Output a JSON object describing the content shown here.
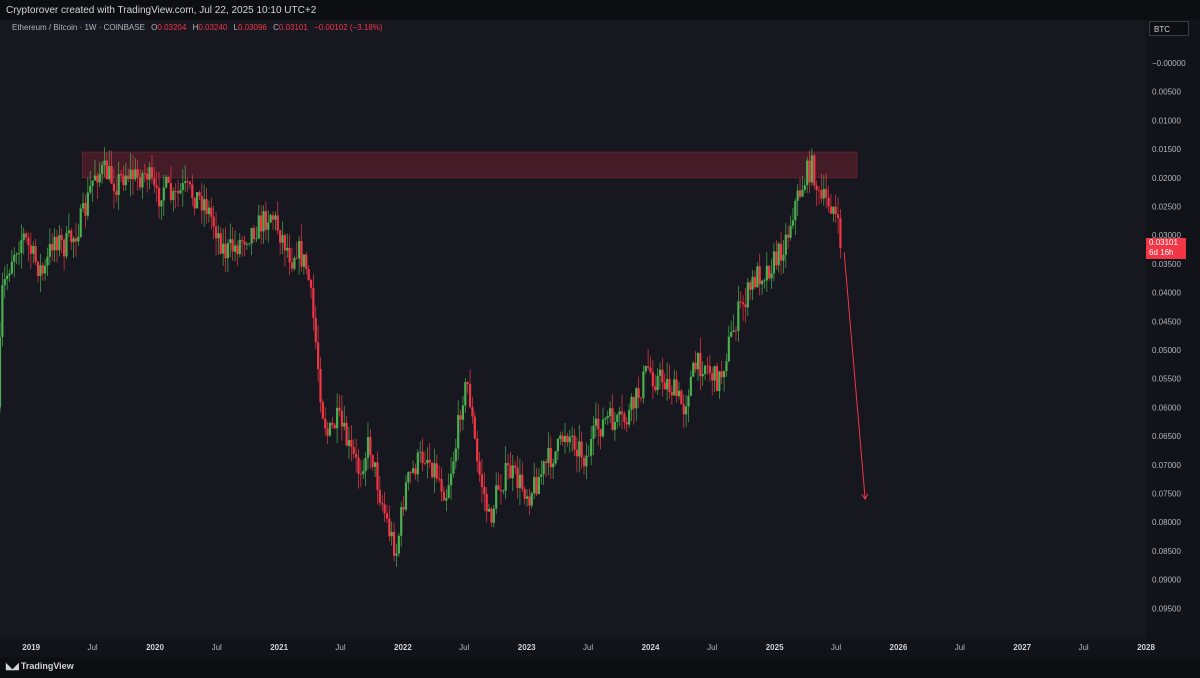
{
  "header": {
    "credit": "Cryptorover created with TradingView.com, Jul 22, 2025 10:10 UTC+2"
  },
  "legend": {
    "symbol": "Ethereum / Bitcoin · 1W · COINBASE",
    "o_label": "O",
    "o_value": "0.03204",
    "h_label": "H",
    "h_value": "0.03240",
    "l_label": "L",
    "l_value": "0.03096",
    "c_label": "C",
    "c_value": "0.03101",
    "change": "−0.00102 (−3.18%)"
  },
  "price_axis": {
    "currency_badge": "BTC",
    "current_price": "0.03101",
    "countdown": "6d 16h"
  },
  "footer": {
    "brand": "TradingView"
  },
  "colors": {
    "up": "#4caf50",
    "down": "#f23645",
    "zone": "#6b2030",
    "background": "#16171f"
  },
  "chart_data": {
    "type": "candlestick",
    "title": "",
    "symbol": "Ethereum / Bitcoin",
    "interval": "1W",
    "exchange": "COINBASE",
    "y_axis": {
      "inverted": true,
      "range": [
        -0.0075,
        0.1
      ],
      "tick_labels": [
        "−0.00000",
        "0.00500",
        "0.01000",
        "0.01500",
        "0.02000",
        "0.02500",
        "0.03000",
        "0.03500",
        "0.04000",
        "0.04500",
        "0.05000",
        "0.05500",
        "0.06000",
        "0.06500",
        "0.07000",
        "0.07500",
        "0.08000",
        "0.08500",
        "0.09000",
        "0.09500"
      ]
    },
    "x_axis": {
      "range": [
        "2018-10-01",
        "2028-01-01"
      ],
      "tick_labels": [
        {
          "label": "2019",
          "date": "2019-01-01",
          "year": true
        },
        {
          "label": "Jul",
          "date": "2019-07-01",
          "year": false
        },
        {
          "label": "2020",
          "date": "2020-01-01",
          "year": true
        },
        {
          "label": "Jul",
          "date": "2020-07-01",
          "year": false
        },
        {
          "label": "2021",
          "date": "2021-01-01",
          "year": true
        },
        {
          "label": "Jul",
          "date": "2021-07-01",
          "year": false
        },
        {
          "label": "2022",
          "date": "2022-01-01",
          "year": true
        },
        {
          "label": "Jul",
          "date": "2022-07-01",
          "year": false
        },
        {
          "label": "2023",
          "date": "2023-01-01",
          "year": true
        },
        {
          "label": "Jul",
          "date": "2023-07-01",
          "year": false
        },
        {
          "label": "2024",
          "date": "2024-01-01",
          "year": true
        },
        {
          "label": "Jul",
          "date": "2024-07-01",
          "year": false
        },
        {
          "label": "2025",
          "date": "2025-01-01",
          "year": true
        },
        {
          "label": "Jul",
          "date": "2025-07-01",
          "year": false
        },
        {
          "label": "2026",
          "date": "2026-01-01",
          "year": true
        },
        {
          "label": "Jul",
          "date": "2026-07-01",
          "year": false
        },
        {
          "label": "2027",
          "date": "2027-01-01",
          "year": true
        },
        {
          "label": "Jul",
          "date": "2027-07-01",
          "year": false
        },
        {
          "label": "2028",
          "date": "2028-01-01",
          "year": true
        }
      ]
    },
    "price_path": [
      [
        "2018-10-01",
        0.06
      ],
      [
        "2018-10-15",
        0.04
      ],
      [
        "2018-11-15",
        0.033
      ],
      [
        "2018-12-15",
        0.03
      ],
      [
        "2019-01-15",
        0.034
      ],
      [
        "2019-02-15",
        0.037
      ],
      [
        "2019-03-15",
        0.03
      ],
      [
        "2019-04-15",
        0.032
      ],
      [
        "2019-05-15",
        0.03
      ],
      [
        "2019-06-15",
        0.026
      ],
      [
        "2019-07-01",
        0.022
      ],
      [
        "2019-07-15",
        0.019
      ],
      [
        "2019-08-15",
        0.019
      ],
      [
        "2019-09-15",
        0.021
      ],
      [
        "2019-10-15",
        0.019
      ],
      [
        "2019-11-15",
        0.02
      ],
      [
        "2019-12-15",
        0.019
      ],
      [
        "2020-01-15",
        0.024
      ],
      [
        "2020-02-01",
        0.021
      ],
      [
        "2020-03-01",
        0.024
      ],
      [
        "2020-04-01",
        0.022
      ],
      [
        "2020-05-01",
        0.023
      ],
      [
        "2020-06-01",
        0.024
      ],
      [
        "2020-07-01",
        0.028
      ],
      [
        "2020-08-01",
        0.033
      ],
      [
        "2020-09-01",
        0.032
      ],
      [
        "2020-10-01",
        0.03
      ],
      [
        "2020-11-15",
        0.028
      ],
      [
        "2020-12-15",
        0.026
      ],
      [
        "2021-01-15",
        0.03
      ],
      [
        "2021-02-15",
        0.034
      ],
      [
        "2021-03-01",
        0.032
      ],
      [
        "2021-04-01",
        0.036
      ],
      [
        "2021-04-20",
        0.045
      ],
      [
        "2021-05-15",
        0.06
      ],
      [
        "2021-06-01",
        0.065
      ],
      [
        "2021-07-01",
        0.062
      ],
      [
        "2021-08-01",
        0.067
      ],
      [
        "2021-09-01",
        0.071
      ],
      [
        "2021-10-01",
        0.066
      ],
      [
        "2021-11-01",
        0.075
      ],
      [
        "2021-12-01",
        0.082
      ],
      [
        "2021-12-20",
        0.085
      ],
      [
        "2022-01-15",
        0.074
      ],
      [
        "2022-02-15",
        0.07
      ],
      [
        "2022-03-15",
        0.068
      ],
      [
        "2022-04-15",
        0.071
      ],
      [
        "2022-05-15",
        0.075
      ],
      [
        "2022-06-15",
        0.066
      ],
      [
        "2022-07-01",
        0.058
      ],
      [
        "2022-07-20",
        0.056
      ],
      [
        "2022-08-15",
        0.07
      ],
      [
        "2022-09-01",
        0.074
      ],
      [
        "2022-09-20",
        0.08
      ],
      [
        "2022-10-15",
        0.074
      ],
      [
        "2022-11-15",
        0.071
      ],
      [
        "2022-12-15",
        0.073
      ],
      [
        "2023-01-15",
        0.075
      ],
      [
        "2023-02-15",
        0.072
      ],
      [
        "2023-03-15",
        0.069
      ],
      [
        "2023-04-15",
        0.067
      ],
      [
        "2023-05-01",
        0.064
      ],
      [
        "2023-06-01",
        0.066
      ],
      [
        "2023-07-01",
        0.069
      ],
      [
        "2023-08-01",
        0.064
      ],
      [
        "2023-09-01",
        0.062
      ],
      [
        "2023-10-01",
        0.063
      ],
      [
        "2023-11-01",
        0.062
      ],
      [
        "2023-12-01",
        0.058
      ],
      [
        "2024-01-01",
        0.053
      ],
      [
        "2024-01-20",
        0.055
      ],
      [
        "2024-02-15",
        0.055
      ],
      [
        "2024-03-15",
        0.057
      ],
      [
        "2024-04-15",
        0.06
      ],
      [
        "2024-05-01",
        0.056
      ],
      [
        "2024-05-20",
        0.053
      ],
      [
        "2024-06-15",
        0.052
      ],
      [
        "2024-07-15",
        0.055
      ],
      [
        "2024-08-01",
        0.055
      ],
      [
        "2024-08-20",
        0.05
      ],
      [
        "2024-09-01",
        0.048
      ],
      [
        "2024-09-20",
        0.044
      ],
      [
        "2024-10-15",
        0.041
      ],
      [
        "2024-11-15",
        0.037
      ],
      [
        "2024-12-15",
        0.036
      ],
      [
        "2025-01-15",
        0.034
      ],
      [
        "2025-02-15",
        0.03
      ],
      [
        "2025-03-01",
        0.026
      ],
      [
        "2025-03-20",
        0.023
      ],
      [
        "2025-04-15",
        0.019
      ],
      [
        "2025-05-01",
        0.018
      ],
      [
        "2025-05-20",
        0.024
      ],
      [
        "2025-06-15",
        0.024
      ],
      [
        "2025-07-01",
        0.025
      ],
      [
        "2025-07-10",
        0.028
      ],
      [
        "2025-07-20",
        0.031
      ]
    ],
    "annotations": {
      "resistance_zone": {
        "price_top": 0.0155,
        "price_bottom": 0.02,
        "date_start": "2019-06-01",
        "date_end": "2025-09-01"
      },
      "arrow": {
        "from_date": "2025-07-25",
        "from_price": 0.033,
        "to_date": "2025-09-25",
        "to_price": 0.076
      }
    },
    "last_price": 0.03101,
    "grid": false
  }
}
